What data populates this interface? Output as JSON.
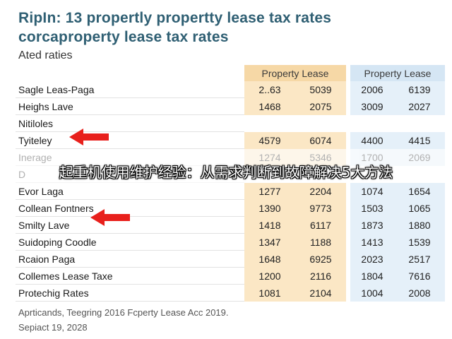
{
  "title_line1": "RipIn: 13 propertly propertty lease tax rates",
  "title_line2": "corcaproperty lease tax rates",
  "subtitle": "Ated raties",
  "headers": {
    "group1": "Property Lease",
    "group2": "Property Lease"
  },
  "rows": [
    {
      "name": "Sagle Leas-Paga",
      "v": [
        "2..63",
        "5039",
        "2006",
        "6139"
      ]
    },
    {
      "name": "Heighs Lave",
      "v": [
        "1468",
        "2075",
        "3009",
        "2027"
      ]
    },
    {
      "name": "Nitiloles",
      "v": [
        "",
        "",
        "",
        ""
      ]
    },
    {
      "name": "Tyiteley",
      "v": [
        "4579",
        "6074",
        "4400",
        "4415"
      ]
    },
    {
      "name": "Inerage",
      "v": [
        "1274",
        "5346",
        "1700",
        "2069"
      ]
    },
    {
      "name": "D",
      "v": [
        "",
        "",
        "",
        ""
      ]
    },
    {
      "name": "Evor Laga",
      "v": [
        "1277",
        "2204",
        "1074",
        "1654"
      ]
    },
    {
      "name": "Collean Fontners",
      "v": [
        "1390",
        "9773",
        "1503",
        "1065"
      ]
    },
    {
      "name": "Smilty Lave",
      "v": [
        "1418",
        "6117",
        "1873",
        "1880"
      ]
    },
    {
      "name": "Suidoping Coodle",
      "v": [
        "1347",
        "1188",
        "1413",
        "1539"
      ]
    },
    {
      "name": "Rcaion Paga",
      "v": [
        "1648",
        "6925",
        "2023",
        "2517"
      ]
    },
    {
      "name": "Collemes Lease Taxe",
      "v": [
        "1200",
        "2116",
        "1804",
        "7616"
      ]
    },
    {
      "name": "Protechig Rates",
      "v": [
        "1081",
        "2104",
        "1004",
        "2008"
      ]
    }
  ],
  "banner": "起重机使用维护经验：从需求判断到故障解决5大方法",
  "footer_line1": "Aprticands, Teegring 2016 Fcperty Lease Acc 2019.",
  "footer_line2": "Sepiact 19, 2028",
  "colors": {
    "title": "#2f5f73",
    "arrow": "#e8201c",
    "orange_col": "#fbe7c5",
    "blue_col": "#e5f0f9"
  },
  "icons": {
    "arrow1": "red-arrow-icon",
    "arrow2": "red-arrow-icon"
  }
}
